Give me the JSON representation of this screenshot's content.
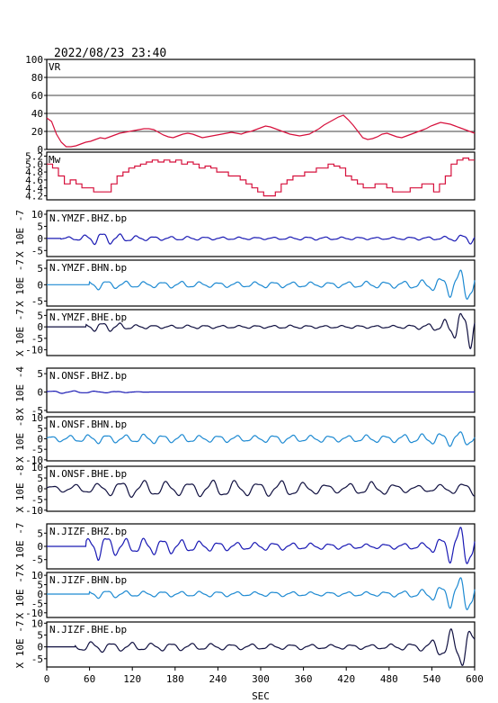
{
  "header": {
    "timestamp": "2022/08/23 23:40"
  },
  "colors": {
    "vr": "#d6103c",
    "mw": "#d6103c",
    "bhz": "#1a1ab4",
    "bhn": "#1e8ad2",
    "bhe": "#101040",
    "axis": "#000000",
    "grid": "#000000"
  },
  "chart_data": [
    {
      "type": "line",
      "id": "vr",
      "title": "VR",
      "ylim": [
        0,
        100
      ],
      "yticks": [
        "100",
        "80",
        "60",
        "40",
        "20",
        "0"
      ],
      "grid": true,
      "series": [
        {
          "values": [
            35,
            31,
            17,
            8,
            3,
            3,
            4,
            6,
            8,
            9,
            11,
            13,
            12,
            14,
            16,
            18,
            19,
            20,
            21,
            22,
            23,
            23,
            22,
            19,
            16,
            14,
            13,
            15,
            17,
            18,
            17,
            15,
            13,
            14,
            15,
            16,
            17,
            18,
            19,
            18,
            17,
            19,
            20,
            22,
            24,
            26,
            25,
            23,
            21,
            19,
            17,
            16,
            15,
            16,
            17,
            20,
            23,
            27,
            30,
            33,
            36,
            38,
            33,
            27,
            20,
            13,
            11,
            12,
            14,
            17,
            18,
            16,
            14,
            13,
            15,
            17,
            19,
            21,
            23,
            26,
            28,
            30,
            29,
            28,
            26,
            24,
            22,
            20,
            18
          ]
        }
      ]
    },
    {
      "type": "step",
      "id": "mw",
      "title": "Mw",
      "ylim": [
        4.1,
        5.3
      ],
      "yticks": [
        "5.2",
        "5.0",
        "4.8",
        "4.6",
        "4.4",
        "4.2"
      ],
      "series": [
        {
          "values": [
            5.0,
            4.9,
            4.7,
            4.5,
            4.6,
            4.5,
            4.4,
            4.4,
            4.3,
            4.3,
            4.3,
            4.5,
            4.7,
            4.8,
            4.9,
            4.95,
            5.0,
            5.05,
            5.1,
            5.05,
            5.1,
            5.05,
            5.1,
            5.0,
            5.05,
            5.0,
            4.9,
            4.95,
            4.9,
            4.8,
            4.8,
            4.7,
            4.7,
            4.6,
            4.5,
            4.4,
            4.3,
            4.2,
            4.2,
            4.3,
            4.5,
            4.6,
            4.7,
            4.7,
            4.8,
            4.8,
            4.9,
            4.9,
            5.0,
            4.95,
            4.9,
            4.7,
            4.6,
            4.5,
            4.4,
            4.4,
            4.5,
            4.5,
            4.4,
            4.3,
            4.3,
            4.3,
            4.4,
            4.4,
            4.5,
            4.5,
            4.3,
            4.5,
            4.7,
            5.0,
            5.1,
            5.15,
            5.1
          ]
        }
      ]
    },
    {
      "type": "line",
      "id": "ymzf-bhz",
      "label": "N.YMZF.BHZ.bp",
      "ylabel": "X 10E -7",
      "color_key": "bhz",
      "ylim": [
        -7.5,
        11.5
      ],
      "yticks": [
        "10",
        "5",
        "0",
        "-5"
      ],
      "onset": 20,
      "period": 24,
      "amps": [
        0.4,
        0.5,
        1.1,
        3.0,
        2.2,
        1.2,
        0.9,
        0.8,
        0.9,
        0.7,
        0.6,
        0.6,
        0.5,
        0.5,
        0.6,
        0.7,
        0.7,
        0.6,
        0.6,
        0.5,
        0.5,
        0.6,
        0.7,
        0.7,
        1.4,
        2.6
      ]
    },
    {
      "type": "line",
      "id": "ymzf-bhn",
      "label": "N.YMZF.BHN.bp",
      "ylabel": "X 10E -7",
      "color_key": "bhn",
      "ylim": [
        -6.5,
        7.5
      ],
      "yticks": [
        "5",
        "0",
        "-5"
      ],
      "onset": 60,
      "period": 26,
      "amps": [
        0.1,
        0.2,
        1.0,
        1.6,
        1.2,
        1.1,
        0.9,
        1.0,
        1.1,
        0.9,
        0.8,
        0.9,
        0.9,
        1.0,
        0.9,
        0.9,
        0.8,
        0.9,
        1.0,
        1.1,
        1.0,
        1.2,
        1.5,
        2.4,
        5.0,
        6.0
      ]
    },
    {
      "type": "line",
      "id": "ymzf-bhe",
      "label": "N.YMZF.BHE.bp",
      "ylabel": "X 10E -7",
      "color_key": "bhe",
      "ylim": [
        -12.5,
        7.5
      ],
      "yticks": [
        "5",
        "0",
        "-5",
        "-10"
      ],
      "onset": 55,
      "period": 24,
      "amps": [
        0.1,
        0.3,
        1.2,
        2.2,
        2.0,
        1.0,
        0.8,
        0.7,
        0.8,
        0.8,
        0.7,
        0.6,
        0.7,
        0.6,
        0.8,
        0.7,
        0.6,
        0.6,
        0.7,
        0.6,
        0.6,
        0.8,
        1.2,
        2.2,
        6.5,
        10.5
      ]
    },
    {
      "type": "line",
      "id": "onsf-bhz",
      "label": "N.ONSF.BHZ.bp",
      "ylabel": "X 10E -4",
      "color_key": "bhz",
      "ylim": [
        -5.5,
        6.5
      ],
      "yticks": [
        "5",
        "0",
        "-5"
      ],
      "onset": 0,
      "period": 30,
      "amps": [
        0.3,
        0.4,
        0.3,
        0.25,
        0.2,
        0.15,
        0,
        0,
        0,
        0,
        0,
        0,
        0,
        0,
        0,
        0,
        0,
        0,
        0,
        0,
        0,
        0,
        0,
        0,
        0,
        0
      ]
    },
    {
      "type": "line",
      "id": "onsf-bhn",
      "label": "N.ONSF.BHN.bp",
      "ylabel": "X 10E -8",
      "color_key": "bhn",
      "ylim": [
        -10.5,
        10.5
      ],
      "yticks": [
        "10",
        "5",
        "0",
        "-5",
        "-10"
      ],
      "onset": 0,
      "period": 26,
      "amps": [
        1.3,
        1.6,
        1.8,
        2.4,
        2.0,
        1.9,
        2.6,
        1.8,
        2.2,
        1.6,
        1.8,
        1.7,
        1.5,
        1.9,
        2.1,
        1.6,
        1.8,
        1.5,
        1.7,
        2.0,
        1.6,
        2.3,
        2.4,
        3.1,
        4.0,
        3.2
      ]
    },
    {
      "type": "line",
      "id": "onsf-bhe",
      "label": "N.ONSF.BHE.bp",
      "ylabel": "X 10E -8",
      "color_key": "bhe",
      "ylim": [
        -10.5,
        10.5
      ],
      "yticks": [
        "10",
        "5",
        "0",
        "-5",
        "-10"
      ],
      "onset": 0,
      "period": 32,
      "amps": [
        1.5,
        1.7,
        2.2,
        2.6,
        3.6,
        4.2,
        4.0,
        3.6,
        3.2,
        3.8,
        4.4,
        4.0,
        3.2,
        3.6,
        4.2,
        3.0,
        2.5,
        2.0,
        2.8,
        3.4,
        2.6,
        1.8,
        1.6,
        2.0,
        2.6,
        3.4
      ]
    },
    {
      "type": "line",
      "id": "jizf-bhz",
      "label": "N.JIZF.BHZ.bp",
      "ylabel": "X 10E -7",
      "color_key": "bhz",
      "ylim": [
        -8.5,
        8.5
      ],
      "yticks": [
        "5",
        "0",
        "-5"
      ],
      "onset": 55,
      "period": 26,
      "amps": [
        0.1,
        0.4,
        1.5,
        5.5,
        3.6,
        2.8,
        3.4,
        3.0,
        2.6,
        2.0,
        1.8,
        1.6,
        1.5,
        1.6,
        1.4,
        1.3,
        1.2,
        1.1,
        1.0,
        0.9,
        1.0,
        1.2,
        1.4,
        3.5,
        8.5,
        8.0
      ]
    },
    {
      "type": "line",
      "id": "jizf-bhn",
      "label": "N.JIZF.BHN.bp",
      "ylabel": "X 10E -7",
      "color_key": "bhn",
      "ylim": [
        -12.5,
        11.5
      ],
      "yticks": [
        "10",
        "5",
        "0",
        "-5",
        "-10"
      ],
      "onset": 60,
      "period": 26,
      "amps": [
        0.1,
        0.3,
        1.2,
        2.4,
        2.0,
        1.6,
        1.5,
        1.6,
        1.4,
        1.5,
        1.6,
        1.3,
        1.2,
        1.3,
        1.4,
        1.2,
        1.1,
        1.2,
        1.3,
        1.2,
        1.4,
        1.8,
        2.5,
        4.6,
        10.0,
        11.0
      ]
    },
    {
      "type": "line",
      "id": "jizf-bhe",
      "label": "N.JIZF.BHE.bp",
      "ylabel": "X 10E -7",
      "color_key": "bhe",
      "ylim": [
        -8.5,
        10.5
      ],
      "yticks": [
        "10",
        "5",
        "0",
        "-5"
      ],
      "onset": 40,
      "period": 28,
      "amps": [
        0.2,
        0.5,
        2.0,
        2.5,
        1.8,
        2.0,
        1.6,
        1.8,
        1.6,
        1.5,
        1.4,
        1.2,
        1.3,
        1.2,
        1.1,
        1.2,
        1.0,
        1.0,
        1.1,
        1.0,
        1.2,
        1.5,
        1.8,
        4.5,
        9.5,
        8.0
      ]
    }
  ],
  "xaxis": {
    "label": "SEC",
    "xlim": [
      0,
      600
    ],
    "ticks": [
      "0",
      "60",
      "120",
      "180",
      "240",
      "300",
      "360",
      "420",
      "480",
      "540",
      "600"
    ]
  }
}
